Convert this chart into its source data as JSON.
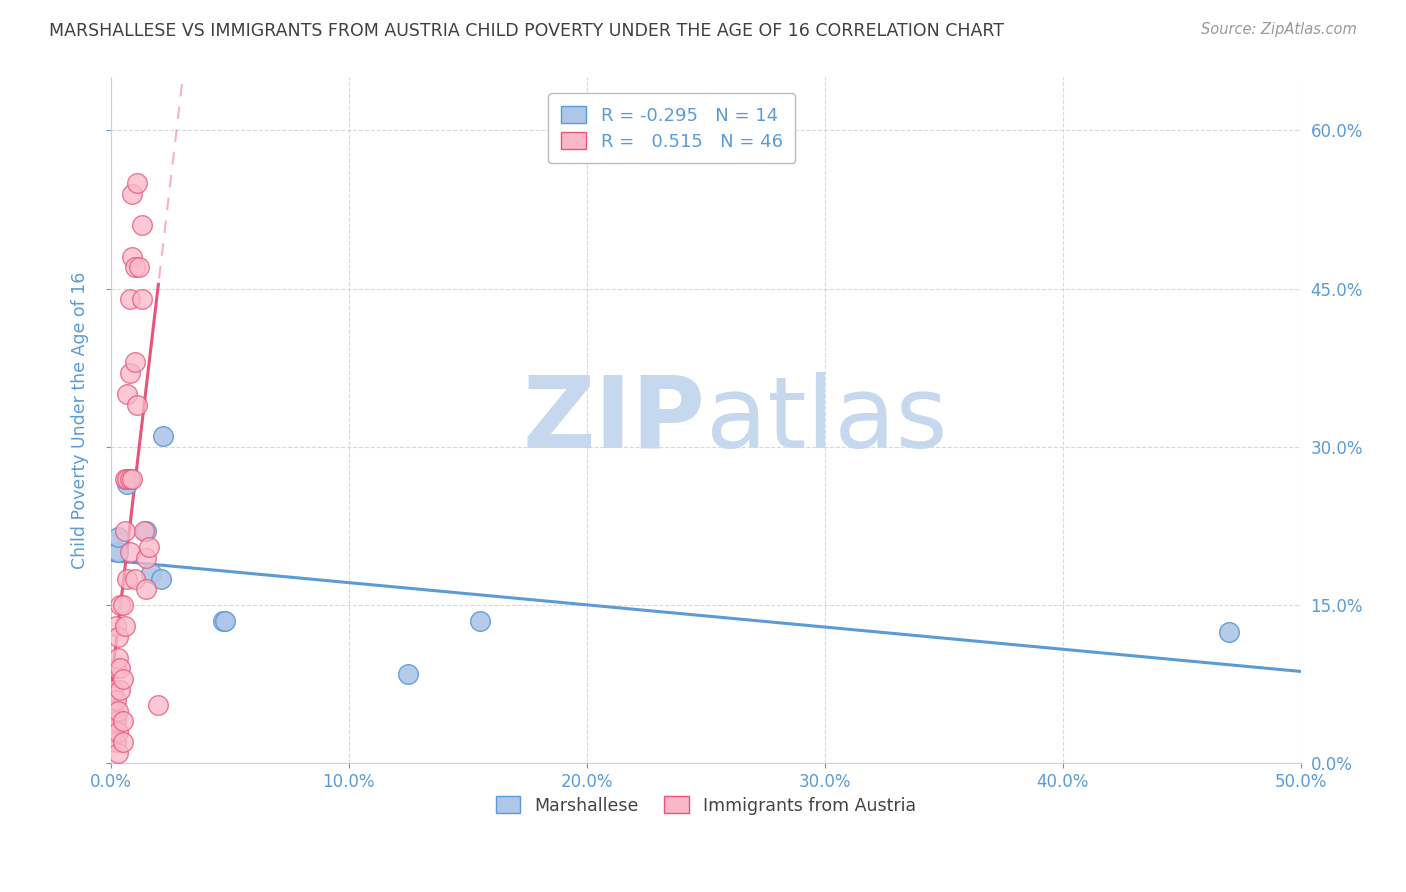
{
  "title": "MARSHALLESE VS IMMIGRANTS FROM AUSTRIA CHILD POVERTY UNDER THE AGE OF 16 CORRELATION CHART",
  "source": "Source: ZipAtlas.com",
  "ylabel": "Child Poverty Under the Age of 16",
  "legend_label1": "Marshallese",
  "legend_label2": "Immigrants from Austria",
  "R1": -0.295,
  "N1": 14,
  "R2": 0.515,
  "N2": 46,
  "color1": "#aec6e8",
  "color2": "#f9b8c8",
  "line_color1": "#5b9bd5",
  "line_color2": "#e8547a",
  "xlim": [
    0.0,
    0.5
  ],
  "ylim": [
    0.0,
    0.65
  ],
  "xticks": [
    0.0,
    0.1,
    0.2,
    0.3,
    0.4,
    0.5
  ],
  "yticks": [
    0.0,
    0.15,
    0.3,
    0.45,
    0.6
  ],
  "blue_points_x": [
    0.002,
    0.003,
    0.003,
    0.007,
    0.008,
    0.015,
    0.017,
    0.021,
    0.022,
    0.047,
    0.048,
    0.125,
    0.155,
    0.47
  ],
  "blue_points_y": [
    0.045,
    0.2,
    0.215,
    0.265,
    0.27,
    0.22,
    0.18,
    0.175,
    0.31,
    0.135,
    0.135,
    0.085,
    0.135,
    0.125
  ],
  "pink_points_x": [
    0.001,
    0.001,
    0.001,
    0.002,
    0.002,
    0.002,
    0.002,
    0.002,
    0.003,
    0.003,
    0.003,
    0.003,
    0.003,
    0.004,
    0.004,
    0.004,
    0.005,
    0.005,
    0.005,
    0.005,
    0.006,
    0.006,
    0.006,
    0.007,
    0.007,
    0.007,
    0.008,
    0.008,
    0.008,
    0.008,
    0.009,
    0.009,
    0.009,
    0.01,
    0.01,
    0.01,
    0.011,
    0.011,
    0.012,
    0.013,
    0.013,
    0.014,
    0.015,
    0.015,
    0.016,
    0.02
  ],
  "pink_points_y": [
    0.03,
    0.05,
    0.07,
    0.02,
    0.04,
    0.06,
    0.09,
    0.13,
    0.01,
    0.03,
    0.05,
    0.1,
    0.12,
    0.07,
    0.09,
    0.15,
    0.02,
    0.04,
    0.08,
    0.15,
    0.13,
    0.22,
    0.27,
    0.175,
    0.27,
    0.35,
    0.2,
    0.27,
    0.37,
    0.44,
    0.48,
    0.54,
    0.27,
    0.175,
    0.38,
    0.47,
    0.34,
    0.55,
    0.47,
    0.44,
    0.51,
    0.22,
    0.165,
    0.195,
    0.205,
    0.055
  ],
  "watermark_top": "ZIP",
  "watermark_bottom": "atlas",
  "watermark_color": "#dce8f5",
  "title_color": "#404040",
  "axis_label_color": "#5b9bd5",
  "tick_color": "#5b9bd5",
  "grid_color": "#d0d0d0"
}
